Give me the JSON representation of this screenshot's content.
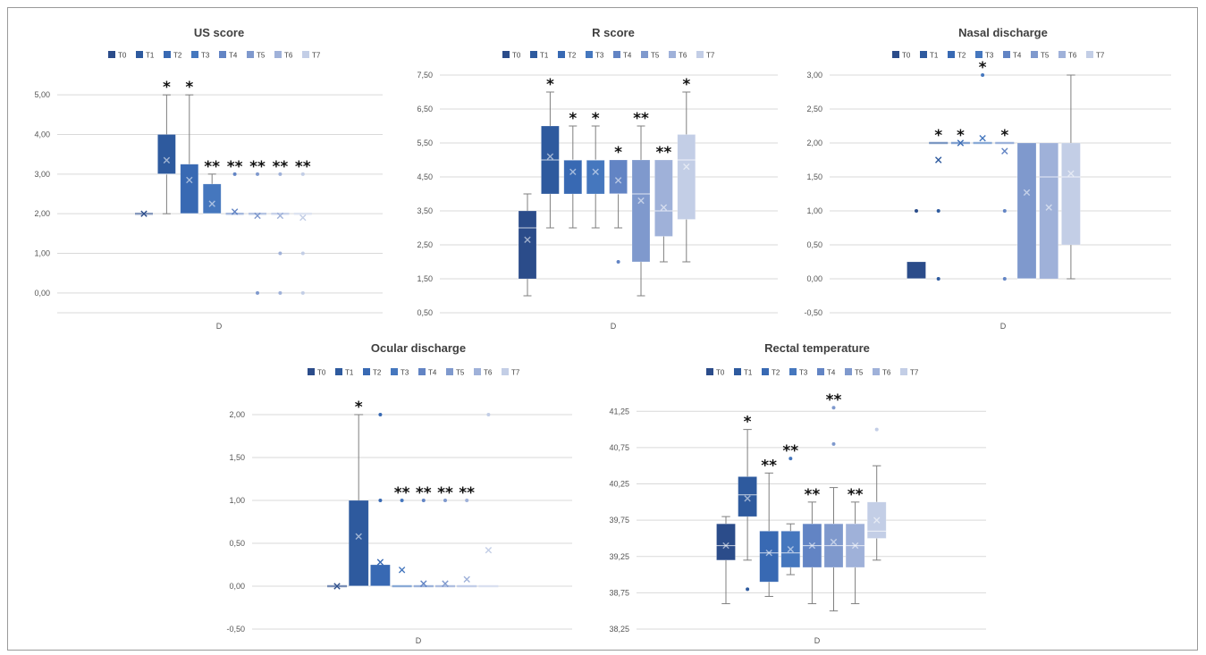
{
  "colors": {
    "T0": "#2b4c8a",
    "T1": "#2e5a9e",
    "T2": "#3869b3",
    "T3": "#4577be",
    "T4": "#6284c4",
    "T5": "#7f99cd",
    "T6": "#9fb1d9",
    "T7": "#c3cee6",
    "axis": "#d9d9d9",
    "whisker": "#7f7f7f"
  },
  "chart_data": [
    {
      "type": "box",
      "title": "US score",
      "xlabel": "",
      "category": "D",
      "legend": [
        "T0",
        "T1",
        "T2",
        "T3",
        "T4",
        "T5",
        "T6",
        "T7"
      ],
      "ylim": [
        -0.5,
        5.5
      ],
      "yticks": [
        "0,00",
        "1,00",
        "2,00",
        "3,00",
        "4,00",
        "5,00"
      ],
      "series": [
        {
          "name": "T0",
          "min": 2,
          "q1": 2,
          "median": 2,
          "q3": 2,
          "max": 2,
          "mean": 2,
          "outliers": [],
          "annotation": ""
        },
        {
          "name": "T1",
          "min": 2,
          "q1": 3,
          "median": 3,
          "q3": 4,
          "max": 5,
          "mean": 3.35,
          "outliers": [],
          "annotation": "*"
        },
        {
          "name": "T2",
          "min": 2,
          "q1": 2,
          "median": 2,
          "q3": 3.25,
          "max": 5,
          "mean": 2.85,
          "outliers": [],
          "annotation": "*"
        },
        {
          "name": "T3",
          "min": 2,
          "q1": 2,
          "median": 2,
          "q3": 2.75,
          "max": 3,
          "mean": 2.25,
          "outliers": [],
          "annotation": "**"
        },
        {
          "name": "T4",
          "min": 2,
          "q1": 2,
          "median": 2,
          "q3": 2,
          "max": 2,
          "mean": 2.05,
          "outliers": [
            3
          ],
          "annotation": "**"
        },
        {
          "name": "T5",
          "min": 2,
          "q1": 2,
          "median": 2,
          "q3": 2,
          "max": 2,
          "mean": 1.95,
          "outliers": [
            3,
            0
          ],
          "annotation": "**"
        },
        {
          "name": "T6",
          "min": 2,
          "q1": 2,
          "median": 2,
          "q3": 2,
          "max": 2,
          "mean": 1.95,
          "outliers": [
            3,
            1,
            0
          ],
          "annotation": "**"
        },
        {
          "name": "T7",
          "min": 2,
          "q1": 2,
          "median": 2,
          "q3": 2,
          "max": 2,
          "mean": 1.9,
          "outliers": [
            3,
            1,
            0
          ],
          "annotation": "**"
        }
      ]
    },
    {
      "type": "box",
      "title": "R score",
      "xlabel": "",
      "category": "D",
      "legend": [
        "T0",
        "T1",
        "T2",
        "T3",
        "T4",
        "T5",
        "T6",
        "T7"
      ],
      "ylim": [
        0.5,
        7.5
      ],
      "yticks": [
        "0,50",
        "1,50",
        "2,50",
        "3,50",
        "4,50",
        "5,50",
        "6,50",
        "7,50"
      ],
      "series": [
        {
          "name": "T0",
          "min": 1,
          "q1": 1.5,
          "median": 3,
          "q3": 3.5,
          "max": 4,
          "mean": 2.65,
          "outliers": [],
          "annotation": ""
        },
        {
          "name": "T1",
          "min": 3,
          "q1": 4,
          "median": 5,
          "q3": 6,
          "max": 7,
          "mean": 5.1,
          "outliers": [],
          "annotation": "*"
        },
        {
          "name": "T2",
          "min": 3,
          "q1": 4,
          "median": 5,
          "q3": 5,
          "max": 6,
          "mean": 4.65,
          "outliers": [],
          "annotation": "*"
        },
        {
          "name": "T3",
          "min": 3,
          "q1": 4,
          "median": 5,
          "q3": 5,
          "max": 6,
          "mean": 4.65,
          "outliers": [],
          "annotation": "*"
        },
        {
          "name": "T4",
          "min": 3,
          "q1": 4,
          "median": 4,
          "q3": 5,
          "max": 5,
          "mean": 4.4,
          "outliers": [
            2
          ],
          "annotation": "*"
        },
        {
          "name": "T5",
          "min": 1,
          "q1": 2,
          "median": 4,
          "q3": 5,
          "max": 6,
          "mean": 3.8,
          "outliers": [],
          "annotation": "**"
        },
        {
          "name": "T6",
          "min": 2,
          "q1": 2.75,
          "median": 3.5,
          "q3": 5,
          "max": 5,
          "mean": 3.6,
          "outliers": [],
          "annotation": "**"
        },
        {
          "name": "T7",
          "min": 2,
          "q1": 3.25,
          "median": 5,
          "q3": 5.75,
          "max": 7,
          "mean": 4.8,
          "outliers": [],
          "annotation": "*"
        }
      ]
    },
    {
      "type": "box",
      "title": "Nasal discharge",
      "xlabel": "",
      "category": "D",
      "legend": [
        "T0",
        "T1",
        "T2",
        "T3",
        "T4",
        "T5",
        "T6",
        "T7"
      ],
      "ylim": [
        -0.5,
        3.0
      ],
      "yticks": [
        "-0,50",
        "0,00",
        "0,50",
        "1,00",
        "1,50",
        "2,00",
        "2,50",
        "3,00"
      ],
      "series": [
        {
          "name": "T0",
          "min": 0,
          "q1": 0,
          "median": 0,
          "q3": 0.25,
          "max": 0.25,
          "mean": null,
          "outliers": [
            1
          ],
          "annotation": ""
        },
        {
          "name": "T1",
          "min": 2,
          "q1": 2,
          "median": 2,
          "q3": 2,
          "max": 2,
          "mean": 1.75,
          "outliers": [
            1,
            0
          ],
          "annotation": "*"
        },
        {
          "name": "T2",
          "min": 2,
          "q1": 2,
          "median": 2,
          "q3": 2,
          "max": 2,
          "mean": 2.0,
          "outliers": [],
          "annotation": "*"
        },
        {
          "name": "T3",
          "min": 2,
          "q1": 2,
          "median": 2,
          "q3": 2,
          "max": 2,
          "mean": 2.07,
          "outliers": [
            3
          ],
          "annotation": "*"
        },
        {
          "name": "T4",
          "min": 2,
          "q1": 2,
          "median": 2,
          "q3": 2,
          "max": 2,
          "mean": 1.88,
          "outliers": [
            1,
            0
          ],
          "annotation": "*"
        },
        {
          "name": "T5",
          "min": 0,
          "q1": 0,
          "median": 0,
          "q3": 2,
          "max": 2,
          "mean": 1.27,
          "outliers": [],
          "annotation": ""
        },
        {
          "name": "T6",
          "min": 0,
          "q1": 0,
          "median": 1.5,
          "q3": 2,
          "max": 2,
          "mean": 1.05,
          "outliers": [],
          "annotation": ""
        },
        {
          "name": "T7",
          "min": 0,
          "q1": 0.5,
          "median": 1.5,
          "q3": 2,
          "max": 3,
          "mean": 1.55,
          "outliers": [],
          "annotation": ""
        }
      ]
    },
    {
      "type": "box",
      "title": "Ocular discharge",
      "xlabel": "",
      "category": "D",
      "legend": [
        "T0",
        "T1",
        "T2",
        "T3",
        "T4",
        "T5",
        "T6",
        "T7"
      ],
      "ylim": [
        -0.5,
        2.25
      ],
      "yticks": [
        "-0,50",
        "0,00",
        "0,50",
        "1,00",
        "1,50",
        "2,00"
      ],
      "series": [
        {
          "name": "T0",
          "min": 0,
          "q1": 0,
          "median": 0,
          "q3": 0,
          "max": 0,
          "mean": 0,
          "outliers": [],
          "annotation": ""
        },
        {
          "name": "T1",
          "min": 0,
          "q1": 0,
          "median": 0,
          "q3": 1,
          "max": 2,
          "mean": 0.58,
          "outliers": [],
          "annotation": "*"
        },
        {
          "name": "T2",
          "min": 0,
          "q1": 0,
          "median": 0,
          "q3": 0.25,
          "max": 0.25,
          "mean": 0.28,
          "outliers": [
            2,
            1
          ],
          "annotation": ""
        },
        {
          "name": "T3",
          "min": 0,
          "q1": 0,
          "median": 0,
          "q3": 0,
          "max": 0,
          "mean": 0.19,
          "outliers": [
            1
          ],
          "annotation": "**"
        },
        {
          "name": "T4",
          "min": 0,
          "q1": 0,
          "median": 0,
          "q3": 0,
          "max": 0,
          "mean": 0.03,
          "outliers": [
            1
          ],
          "annotation": "**"
        },
        {
          "name": "T5",
          "min": 0,
          "q1": 0,
          "median": 0,
          "q3": 0,
          "max": 0,
          "mean": 0.03,
          "outliers": [
            1
          ],
          "annotation": "**"
        },
        {
          "name": "T6",
          "min": 0,
          "q1": 0,
          "median": 0,
          "q3": 0,
          "max": 0,
          "mean": 0.08,
          "outliers": [
            1
          ],
          "annotation": "**"
        },
        {
          "name": "T7",
          "min": 0,
          "q1": 0,
          "median": 0,
          "q3": 0,
          "max": 0,
          "mean": 0.42,
          "outliers": [
            2
          ],
          "annotation": ""
        }
      ]
    },
    {
      "type": "box",
      "title": "Rectal temperature",
      "xlabel": "",
      "category": "D",
      "legend": [
        "T0",
        "T1",
        "T2",
        "T3",
        "T4",
        "T5",
        "T6",
        "T7"
      ],
      "ylim": [
        38.25,
        41.5
      ],
      "yticks": [
        "38,25",
        "38,75",
        "39,25",
        "39,75",
        "40,25",
        "40,75",
        "41,25"
      ],
      "series": [
        {
          "name": "T0",
          "min": 38.6,
          "q1": 39.2,
          "median": 39.4,
          "q3": 39.7,
          "max": 39.8,
          "mean": 39.4,
          "outliers": [],
          "annotation": ""
        },
        {
          "name": "T1",
          "min": 39.2,
          "q1": 39.8,
          "median": 40.1,
          "q3": 40.35,
          "max": 41.0,
          "mean": 40.05,
          "outliers": [
            38.8
          ],
          "annotation": "*"
        },
        {
          "name": "T2",
          "min": 38.7,
          "q1": 38.9,
          "median": 39.3,
          "q3": 39.6,
          "max": 40.4,
          "mean": 39.3,
          "outliers": [],
          "annotation": "**"
        },
        {
          "name": "T3",
          "min": 39.0,
          "q1": 39.1,
          "median": 39.3,
          "q3": 39.6,
          "max": 39.7,
          "mean": 39.35,
          "outliers": [
            40.6
          ],
          "annotation": "**"
        },
        {
          "name": "T4",
          "min": 38.6,
          "q1": 39.1,
          "median": 39.4,
          "q3": 39.7,
          "max": 40.0,
          "mean": 39.4,
          "outliers": [],
          "annotation": "**"
        },
        {
          "name": "T5",
          "min": 38.5,
          "q1": 39.1,
          "median": 39.4,
          "q3": 39.7,
          "max": 40.2,
          "mean": 39.45,
          "outliers": [
            41.3,
            40.8
          ],
          "annotation": "**"
        },
        {
          "name": "T6",
          "min": 38.6,
          "q1": 39.1,
          "median": 39.4,
          "q3": 39.7,
          "max": 40.0,
          "mean": 39.4,
          "outliers": [],
          "annotation": "**"
        },
        {
          "name": "T7",
          "min": 39.2,
          "q1": 39.5,
          "median": 39.6,
          "q3": 40.0,
          "max": 40.5,
          "mean": 39.75,
          "outliers": [
            41.0
          ],
          "annotation": ""
        }
      ]
    }
  ]
}
